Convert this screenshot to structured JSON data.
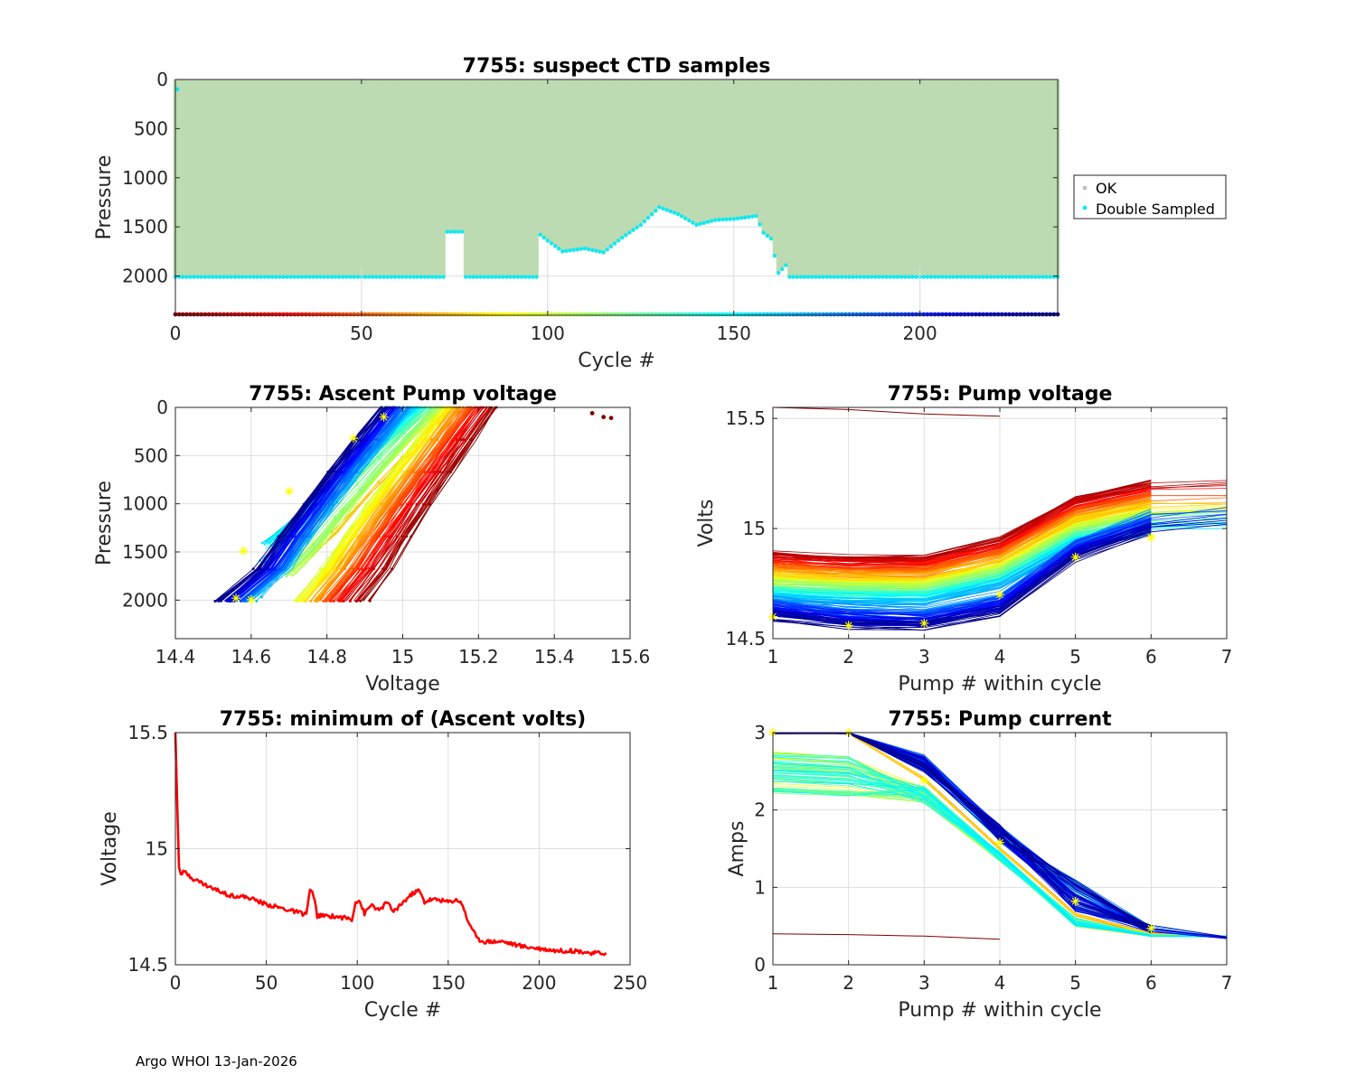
{
  "footer": "Argo WHOI 13-Jan-2026",
  "chart_data": [
    {
      "id": "ctd",
      "type": "scatter",
      "title": "7755: suspect CTD samples",
      "xlabel": "Cycle #",
      "ylabel": "Pressure",
      "xlim": [
        0,
        237
      ],
      "ylim": [
        2400,
        0
      ],
      "xticks": [
        "0",
        "50",
        "100",
        "150",
        "200"
      ],
      "yticks": [
        "0",
        "500",
        "1000",
        "1500",
        "2000"
      ],
      "legend": {
        "position": "right",
        "entries": [
          "OK",
          "Double Sampled"
        ]
      },
      "profile_depth_breakpoints": [
        {
          "cycle": 0,
          "pressure": 2010
        },
        {
          "cycle": 72,
          "pressure": 2010
        },
        {
          "cycle": 73,
          "pressure": 1550
        },
        {
          "cycle": 77,
          "pressure": 1550
        },
        {
          "cycle": 78,
          "pressure": 2010
        },
        {
          "cycle": 97,
          "pressure": 2010
        },
        {
          "cycle": 98,
          "pressure": 1580
        },
        {
          "cycle": 100,
          "pressure": 1640
        },
        {
          "cycle": 104,
          "pressure": 1750
        },
        {
          "cycle": 110,
          "pressure": 1720
        },
        {
          "cycle": 115,
          "pressure": 1760
        },
        {
          "cycle": 120,
          "pressure": 1610
        },
        {
          "cycle": 125,
          "pressure": 1480
        },
        {
          "cycle": 130,
          "pressure": 1300
        },
        {
          "cycle": 135,
          "pressure": 1370
        },
        {
          "cycle": 140,
          "pressure": 1480
        },
        {
          "cycle": 145,
          "pressure": 1430
        },
        {
          "cycle": 150,
          "pressure": 1420
        },
        {
          "cycle": 156,
          "pressure": 1390
        },
        {
          "cycle": 158,
          "pressure": 1560
        },
        {
          "cycle": 160,
          "pressure": 1620
        },
        {
          "cycle": 162,
          "pressure": 1970
        },
        {
          "cycle": 164,
          "pressure": 1890
        },
        {
          "cycle": 165,
          "pressure": 2010
        },
        {
          "cycle": 237,
          "pressure": 2010
        }
      ]
    },
    {
      "id": "ascent",
      "type": "line",
      "title": "7755: Ascent Pump voltage",
      "xlabel": "Voltage",
      "ylabel": "Pressure",
      "xlim": [
        14.4,
        15.6
      ],
      "ylim": [
        2400,
        0
      ],
      "xticks": [
        "14.4",
        "14.6",
        "14.8",
        "15",
        "15.2",
        "15.4",
        "15.6"
      ],
      "yticks": [
        "0",
        "500",
        "1000",
        "1500",
        "2000"
      ],
      "early_cycle_points": [
        {
          "voltage": 15.5,
          "pressure": 60
        },
        {
          "voltage": 15.53,
          "pressure": 100
        },
        {
          "voltage": 15.55,
          "pressure": 110
        }
      ],
      "latest_cycle_markers": [
        {
          "voltage": 14.56,
          "pressure": 1980
        },
        {
          "voltage": 14.6,
          "pressure": 1995
        },
        {
          "voltage": 14.58,
          "pressure": 1490
        },
        {
          "voltage": 14.7,
          "pressure": 870
        },
        {
          "voltage": 14.87,
          "pressure": 320
        },
        {
          "voltage": 14.95,
          "pressure": 100
        }
      ]
    },
    {
      "id": "pumpv",
      "type": "line",
      "title": "7755: Pump voltage",
      "xlabel": "Pump # within cycle",
      "ylabel": "Volts",
      "xlim": [
        1,
        7
      ],
      "ylim": [
        14.5,
        15.55
      ],
      "xticks": [
        "1",
        "2",
        "3",
        "4",
        "5",
        "6",
        "7"
      ],
      "yticks": [
        "14.5",
        "15",
        "15.5"
      ],
      "first_cycle_series": [
        {
          "x": 1,
          "y": 15.55
        },
        {
          "x": 2,
          "y": 15.54
        },
        {
          "x": 3,
          "y": 15.52
        },
        {
          "x": 4,
          "y": 15.51
        }
      ],
      "latest_cycle_markers": [
        {
          "x": 1,
          "y": 14.6
        },
        {
          "x": 2,
          "y": 14.56
        },
        {
          "x": 3,
          "y": 14.57
        },
        {
          "x": 4,
          "y": 14.7
        },
        {
          "x": 5,
          "y": 14.87
        },
        {
          "x": 6,
          "y": 14.96
        }
      ]
    },
    {
      "id": "minv",
      "type": "line",
      "title": "7755: minimum of (Ascent volts)",
      "xlabel": "Cycle #",
      "ylabel": "Voltage",
      "xlim": [
        0,
        250
      ],
      "ylim": [
        14.5,
        15.5
      ],
      "xticks": [
        "0",
        "50",
        "100",
        "150",
        "200",
        "250"
      ],
      "yticks": [
        "14.5",
        "15",
        "15.5"
      ],
      "series": [
        {
          "name": "minimum ascent volts",
          "color": "#ff0000",
          "points": [
            [
              0,
              15.5
            ],
            [
              1,
              15.2
            ],
            [
              2,
              14.92
            ],
            [
              3,
              14.89
            ],
            [
              5,
              14.9
            ],
            [
              10,
              14.87
            ],
            [
              20,
              14.83
            ],
            [
              30,
              14.8
            ],
            [
              40,
              14.79
            ],
            [
              50,
              14.76
            ],
            [
              60,
              14.74
            ],
            [
              70,
              14.72
            ],
            [
              72,
              14.72
            ],
            [
              74,
              14.82
            ],
            [
              76,
              14.8
            ],
            [
              78,
              14.71
            ],
            [
              85,
              14.71
            ],
            [
              95,
              14.7
            ],
            [
              97,
              14.69
            ],
            [
              99,
              14.77
            ],
            [
              101,
              14.78
            ],
            [
              104,
              14.72
            ],
            [
              108,
              14.76
            ],
            [
              112,
              14.73
            ],
            [
              116,
              14.77
            ],
            [
              120,
              14.73
            ],
            [
              124,
              14.76
            ],
            [
              128,
              14.79
            ],
            [
              131,
              14.81
            ],
            [
              134,
              14.82
            ],
            [
              137,
              14.77
            ],
            [
              140,
              14.78
            ],
            [
              145,
              14.78
            ],
            [
              150,
              14.77
            ],
            [
              155,
              14.78
            ],
            [
              158,
              14.76
            ],
            [
              160,
              14.7
            ],
            [
              163,
              14.66
            ],
            [
              166,
              14.61
            ],
            [
              170,
              14.6
            ],
            [
              180,
              14.6
            ],
            [
              190,
              14.58
            ],
            [
              200,
              14.57
            ],
            [
              210,
              14.56
            ],
            [
              220,
              14.56
            ],
            [
              230,
              14.55
            ],
            [
              237,
              14.55
            ]
          ]
        }
      ]
    },
    {
      "id": "pumpc",
      "type": "line",
      "title": "7755: Pump current",
      "xlabel": "Pump # within cycle",
      "ylabel": "Amps",
      "xlim": [
        1,
        7
      ],
      "ylim": [
        0,
        3
      ],
      "xticks": [
        "1",
        "2",
        "3",
        "4",
        "5",
        "6",
        "7"
      ],
      "yticks": [
        "0",
        "1",
        "2",
        "3"
      ],
      "first_cycle_series": [
        {
          "x": 1,
          "y": 0.4
        },
        {
          "x": 2,
          "y": 0.39
        },
        {
          "x": 3,
          "y": 0.37
        },
        {
          "x": 4,
          "y": 0.33
        }
      ],
      "latest_cycle_markers": [
        {
          "x": 1,
          "y": 3.0
        },
        {
          "x": 2,
          "y": 3.0
        },
        {
          "x": 3,
          "y": 2.38
        },
        {
          "x": 4,
          "y": 1.58
        },
        {
          "x": 5,
          "y": 0.82
        },
        {
          "x": 6,
          "y": 0.47
        }
      ]
    }
  ]
}
